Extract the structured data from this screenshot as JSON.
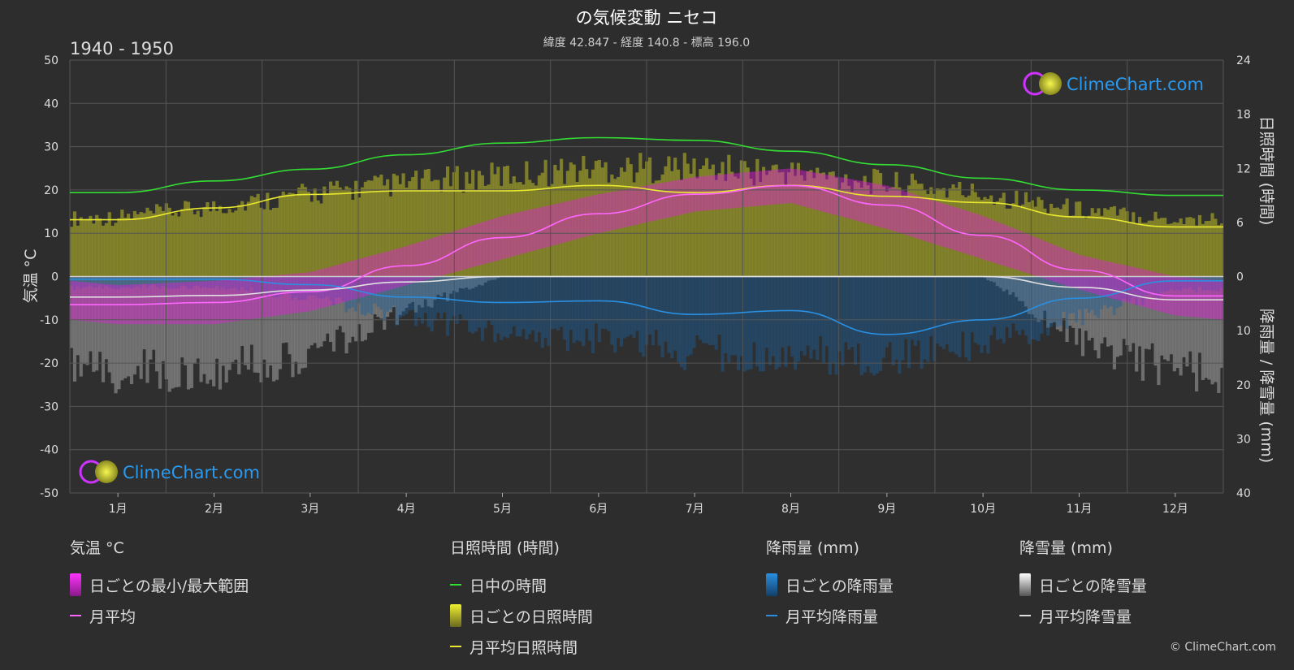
{
  "title": "の気候変動 ニセコ",
  "subtitle": "緯度 42.847 - 経度 140.8 - 標高 196.0",
  "period": "1940 - 1950",
  "logo_text": "ClimeChart.com",
  "copyright": "© ClimeChart.com",
  "colors": {
    "background": "#2d2d2d",
    "temp_range": "#e020d8",
    "temp_avg": "#ff66ff",
    "daylight": "#33dd33",
    "sunshine_bar": "#9a9a2a",
    "sunshine_avg": "#e8e830",
    "rain_bar": "#1f5f9a",
    "rain_avg": "#2a8fe0",
    "snow_bar": "#9a9a9a",
    "snow_avg": "#e0e0e0"
  },
  "chart_data": {
    "type": "line",
    "x_label_kind": "month",
    "categories": [
      "1月",
      "2月",
      "3月",
      "4月",
      "5月",
      "6月",
      "7月",
      "8月",
      "9月",
      "10月",
      "11月",
      "12月"
    ],
    "axes": {
      "left": {
        "label": "気温 °C",
        "min": -50,
        "max": 50,
        "ticks": [
          50,
          40,
          30,
          20,
          10,
          0,
          -10,
          -20,
          -30,
          -40,
          -50
        ]
      },
      "right_top": {
        "label": "日照時間 (時間)",
        "min": 0,
        "max": 24,
        "ticks": [
          24,
          18,
          12,
          6,
          0
        ]
      },
      "right_bottom": {
        "label": "降雨量 / 降雪量 (mm)",
        "min": 0,
        "max": 40,
        "ticks": [
          0,
          10,
          20,
          30,
          40
        ]
      }
    },
    "series": [
      {
        "name": "日中の時間",
        "unit": "hours",
        "values": [
          9.3,
          10.6,
          11.9,
          13.5,
          14.8,
          15.4,
          15.1,
          13.9,
          12.4,
          10.9,
          9.6,
          9.0
        ]
      },
      {
        "name": "月平均日照時間",
        "unit": "hours",
        "values": [
          6.3,
          7.6,
          9.1,
          9.5,
          9.5,
          10.1,
          9.3,
          10.1,
          8.9,
          8.2,
          6.6,
          5.5
        ]
      },
      {
        "name": "月平均",
        "unit": "°C",
        "values": [
          -6.5,
          -6.0,
          -3.5,
          2.5,
          9.0,
          14.5,
          19.0,
          21.0,
          16.5,
          9.5,
          1.5,
          -4.5
        ]
      },
      {
        "name": "月平均降雨量",
        "unit": "mm",
        "values": [
          0.5,
          0.5,
          1.5,
          3.8,
          4.8,
          4.5,
          7.0,
          6.3,
          10.7,
          8.0,
          4.0,
          0.8
        ]
      },
      {
        "name": "月平均降雪量",
        "unit": "mm",
        "values": [
          3.8,
          3.5,
          2.5,
          1.0,
          0.0,
          0.0,
          0.0,
          0.0,
          0.0,
          0.0,
          2.0,
          4.3
        ]
      }
    ],
    "daily_temp_range": {
      "min": [
        -11,
        -11,
        -8,
        -2,
        4,
        10,
        15,
        17,
        11,
        4,
        -3,
        -9
      ],
      "max": [
        -2,
        -1,
        1,
        7,
        14,
        19,
        23,
        25,
        21,
        14,
        5,
        0
      ]
    },
    "daily_sunshine_max": [
      7.5,
      8.8,
      10.5,
      11.8,
      12.8,
      13.8,
      13.8,
      13.2,
      11.8,
      10.5,
      8.5,
      7.2
    ],
    "daily_rain_max": [
      3,
      3,
      6,
      12,
      16,
      18,
      22,
      22,
      24,
      20,
      12,
      4
    ],
    "daily_snow_max": [
      22,
      22,
      18,
      8,
      0,
      0,
      0,
      0,
      0,
      0,
      15,
      22
    ],
    "grid": true
  },
  "legend": {
    "temp": {
      "title": "気温 °C",
      "items": [
        "日ごとの最小/最大範囲",
        "月平均"
      ]
    },
    "sun": {
      "title": "日照時間 (時間)",
      "items": [
        "日中の時間",
        "日ごとの日照時間",
        "月平均日照時間"
      ]
    },
    "rain": {
      "title": "降雨量 (mm)",
      "items": [
        "日ごとの降雨量",
        "月平均降雨量"
      ]
    },
    "snow": {
      "title": "降雪量 (mm)",
      "items": [
        "日ごとの降雪量",
        "月平均降雪量"
      ]
    }
  }
}
